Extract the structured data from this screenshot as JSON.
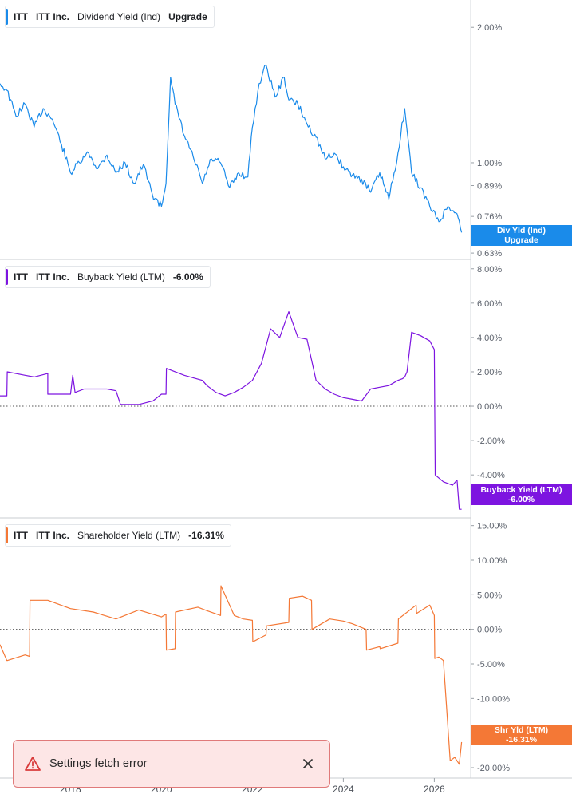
{
  "panels": [
    {
      "ticker": "ITT",
      "company": "ITT Inc.",
      "metric": "Dividend Yield (Ind)",
      "value": "Upgrade",
      "color": "#1a8bea",
      "tag": [
        "Div Yld (Ind)",
        "Upgrade"
      ],
      "yticks": [
        "2.00%",
        "1.00%",
        "0.89%",
        "0.76%",
        "0.63%"
      ]
    },
    {
      "ticker": "ITT",
      "company": "ITT Inc.",
      "metric": "Buyback Yield (LTM)",
      "value": "-6.00%",
      "color": "#7d14e0",
      "tag": [
        "Buyback Yield (LTM)",
        "-6.00%"
      ],
      "yticks": [
        "8.00%",
        "6.00%",
        "4.00%",
        "2.00%",
        "0.00%",
        "-2.00%",
        "-4.00%"
      ]
    },
    {
      "ticker": "ITT",
      "company": "ITT Inc.",
      "metric": "Shareholder Yield (LTM)",
      "value": "-16.31%",
      "color": "#f47836",
      "tag": [
        "Shr Yld (LTM)",
        "-16.31%"
      ],
      "yticks": [
        "15.00%",
        "10.00%",
        "5.00%",
        "0.00%",
        "-5.00%",
        "-10.00%",
        "-20.00%"
      ]
    }
  ],
  "x_axis": {
    "labels": [
      "2018",
      "2020",
      "2022",
      "2024",
      "2026"
    ]
  },
  "toast": {
    "message": "Settings fetch error"
  },
  "chart_data": [
    {
      "type": "line",
      "title": "ITT Inc. Dividend Yield (Ind)",
      "y_scale": "log",
      "ylim_percent": [
        0.61,
        2.3
      ],
      "x": [
        2016.45,
        2016.6,
        2016.8,
        2017.0,
        2017.2,
        2017.4,
        2017.6,
        2017.8,
        2018.0,
        2018.2,
        2018.4,
        2018.6,
        2018.8,
        2019.0,
        2019.2,
        2019.4,
        2019.6,
        2019.8,
        2020.0,
        2020.1,
        2020.2,
        2020.3,
        2020.5,
        2020.7,
        2020.9,
        2021.1,
        2021.3,
        2021.5,
        2021.7,
        2021.9,
        2022.0,
        2022.15,
        2022.3,
        2022.5,
        2022.7,
        2022.8,
        2023.0,
        2023.2,
        2023.4,
        2023.6,
        2023.8,
        2024.0,
        2024.2,
        2024.4,
        2024.6,
        2024.8,
        2025.0,
        2025.2,
        2025.35,
        2025.5,
        2025.7,
        2025.9,
        2026.1,
        2026.3,
        2026.5,
        2026.6
      ],
      "series": [
        {
          "values": [
            1.5,
            1.45,
            1.27,
            1.35,
            1.2,
            1.32,
            1.25,
            1.1,
            0.95,
            1.0,
            1.05,
            0.97,
            1.04,
            0.95,
            1.0,
            0.9,
            0.99,
            0.85,
            0.8,
            0.9,
            1.55,
            1.35,
            1.15,
            1.03,
            0.9,
            1.02,
            1.0,
            0.88,
            0.95,
            0.93,
            1.2,
            1.5,
            1.65,
            1.4,
            1.55,
            1.38,
            1.35,
            1.22,
            1.14,
            1.02,
            1.05,
            0.98,
            0.94,
            0.92,
            0.86,
            0.95,
            0.83,
            1.05,
            1.32,
            0.95,
            0.88,
            0.8,
            0.74,
            0.8,
            0.77,
            0.7
          ]
        }
      ]
    },
    {
      "type": "line",
      "title": "ITT Inc. Buyback Yield (LTM)",
      "ylim_percent": [
        -6.5,
        8.5
      ],
      "x": [
        2016.45,
        2016.6,
        2016.61,
        2017.0,
        2017.2,
        2017.5,
        2017.5,
        2017.8,
        2018.0,
        2018.05,
        2018.1,
        2018.3,
        2018.6,
        2018.8,
        2019.0,
        2019.1,
        2019.5,
        2019.8,
        2019.81,
        2020.0,
        2020.1,
        2020.11,
        2020.5,
        2020.9,
        2021.0,
        2021.2,
        2021.4,
        2021.6,
        2021.8,
        2022.0,
        2022.1,
        2022.2,
        2022.4,
        2022.6,
        2022.8,
        2023.0,
        2023.2,
        2023.4,
        2023.6,
        2023.8,
        2024.0,
        2024.2,
        2024.4,
        2024.6,
        2024.8,
        2025.0,
        2025.2,
        2025.3,
        2025.35,
        2025.4,
        2025.5,
        2025.7,
        2025.9,
        2026.0,
        2026.02,
        2026.2,
        2026.4,
        2026.5,
        2026.55,
        2026.6
      ],
      "series": [
        {
          "values": [
            0.6,
            0.6,
            2.0,
            1.8,
            1.7,
            1.9,
            0.7,
            0.7,
            0.7,
            1.8,
            0.8,
            1.0,
            1.0,
            1.0,
            0.9,
            0.1,
            0.1,
            0.3,
            0.3,
            0.7,
            0.7,
            2.2,
            1.8,
            1.5,
            1.2,
            0.8,
            0.6,
            0.8,
            1.1,
            1.5,
            2.0,
            2.5,
            4.5,
            4.0,
            5.5,
            4.0,
            3.9,
            1.5,
            1.0,
            0.7,
            0.5,
            0.4,
            0.3,
            1.0,
            1.1,
            1.2,
            1.5,
            1.6,
            1.7,
            2.0,
            4.3,
            4.1,
            3.8,
            3.3,
            -4.0,
            -4.4,
            -4.6,
            -4.3,
            -6.0,
            -6.0
          ]
        }
      ]
    },
    {
      "type": "line",
      "title": "ITT Inc. Shareholder Yield (LTM)",
      "ylim_percent": [
        -21.5,
        16
      ],
      "x": [
        2016.45,
        2016.6,
        2016.61,
        2017.0,
        2017.1,
        2017.11,
        2017.5,
        2018.0,
        2018.5,
        2019.0,
        2019.5,
        2020.0,
        2020.1,
        2020.11,
        2020.3,
        2020.31,
        2020.8,
        2021.0,
        2021.3,
        2021.31,
        2021.6,
        2021.8,
        2022.0,
        2022.01,
        2022.3,
        2022.31,
        2022.8,
        2022.81,
        2023.1,
        2023.3,
        2023.31,
        2023.7,
        2024.0,
        2024.2,
        2024.5,
        2024.51,
        2024.8,
        2024.81,
        2025.2,
        2025.21,
        2025.6,
        2025.61,
        2025.9,
        2026.0,
        2026.01,
        2026.1,
        2026.2,
        2026.35,
        2026.45,
        2026.55,
        2026.6
      ],
      "series": [
        {
          "values": [
            -2.2,
            -4.5,
            -4.5,
            -3.7,
            -3.9,
            4.2,
            4.2,
            3.0,
            2.5,
            1.5,
            2.8,
            1.8,
            2.2,
            -3.0,
            -2.8,
            2.5,
            3.2,
            2.7,
            2.0,
            6.3,
            2.0,
            1.5,
            1.3,
            -1.8,
            -0.8,
            0.5,
            1.0,
            4.5,
            4.8,
            4.2,
            0.0,
            1.5,
            1.2,
            0.8,
            0.0,
            -3.0,
            -2.5,
            -2.8,
            -2.0,
            1.5,
            3.5,
            2.3,
            3.5,
            2.0,
            -4.2,
            -4.0,
            -4.5,
            -19.0,
            -18.5,
            -19.5,
            -16.3
          ]
        }
      ]
    }
  ]
}
